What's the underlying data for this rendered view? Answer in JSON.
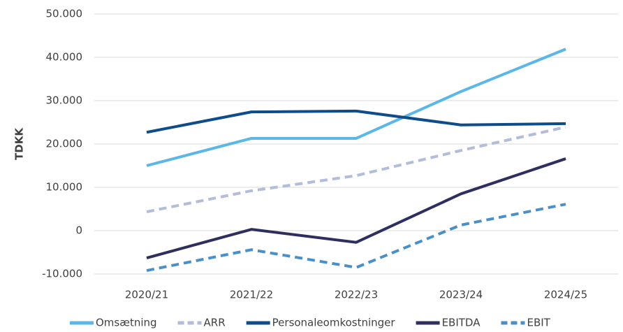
{
  "chart_data": {
    "type": "line",
    "y_label": "TDKK",
    "categories": [
      "2020/21",
      "2021/22",
      "2022/23",
      "2023/24",
      "2024/25"
    ],
    "series": [
      {
        "name": "Omsætning",
        "color": "#5bb7e5",
        "dashed": false,
        "values": [
          15000,
          21300,
          21300,
          32100,
          41900
        ]
      },
      {
        "name": "ARR",
        "color": "#b3bcd9",
        "dashed": true,
        "values": [
          4350,
          9200,
          12700,
          18500,
          23900
        ]
      },
      {
        "name": "Personaleomkostninger",
        "color": "#0e4c8a",
        "dashed": false,
        "values": [
          22700,
          27400,
          27600,
          24400,
          24700
        ]
      },
      {
        "name": "EBITDA",
        "color": "#2e2f5e",
        "dashed": false,
        "values": [
          -6300,
          300,
          -2700,
          8500,
          16600
        ]
      },
      {
        "name": "EBIT",
        "color": "#4a90c8",
        "dashed": true,
        "values": [
          -9200,
          -4400,
          -8500,
          1300,
          6100
        ]
      }
    ],
    "ylim": [
      -10000,
      50000
    ],
    "yticks": [
      {
        "value": -10000,
        "label": "-10.000"
      },
      0,
      {
        "value": 10000,
        "label": "10.000"
      },
      {
        "value": 20000,
        "label": "20.000"
      },
      {
        "value": 30000,
        "label": "30.000"
      },
      {
        "value": 40000,
        "label": "40.000"
      },
      {
        "value": 50000,
        "label": "50.000"
      }
    ],
    "grid": true
  }
}
